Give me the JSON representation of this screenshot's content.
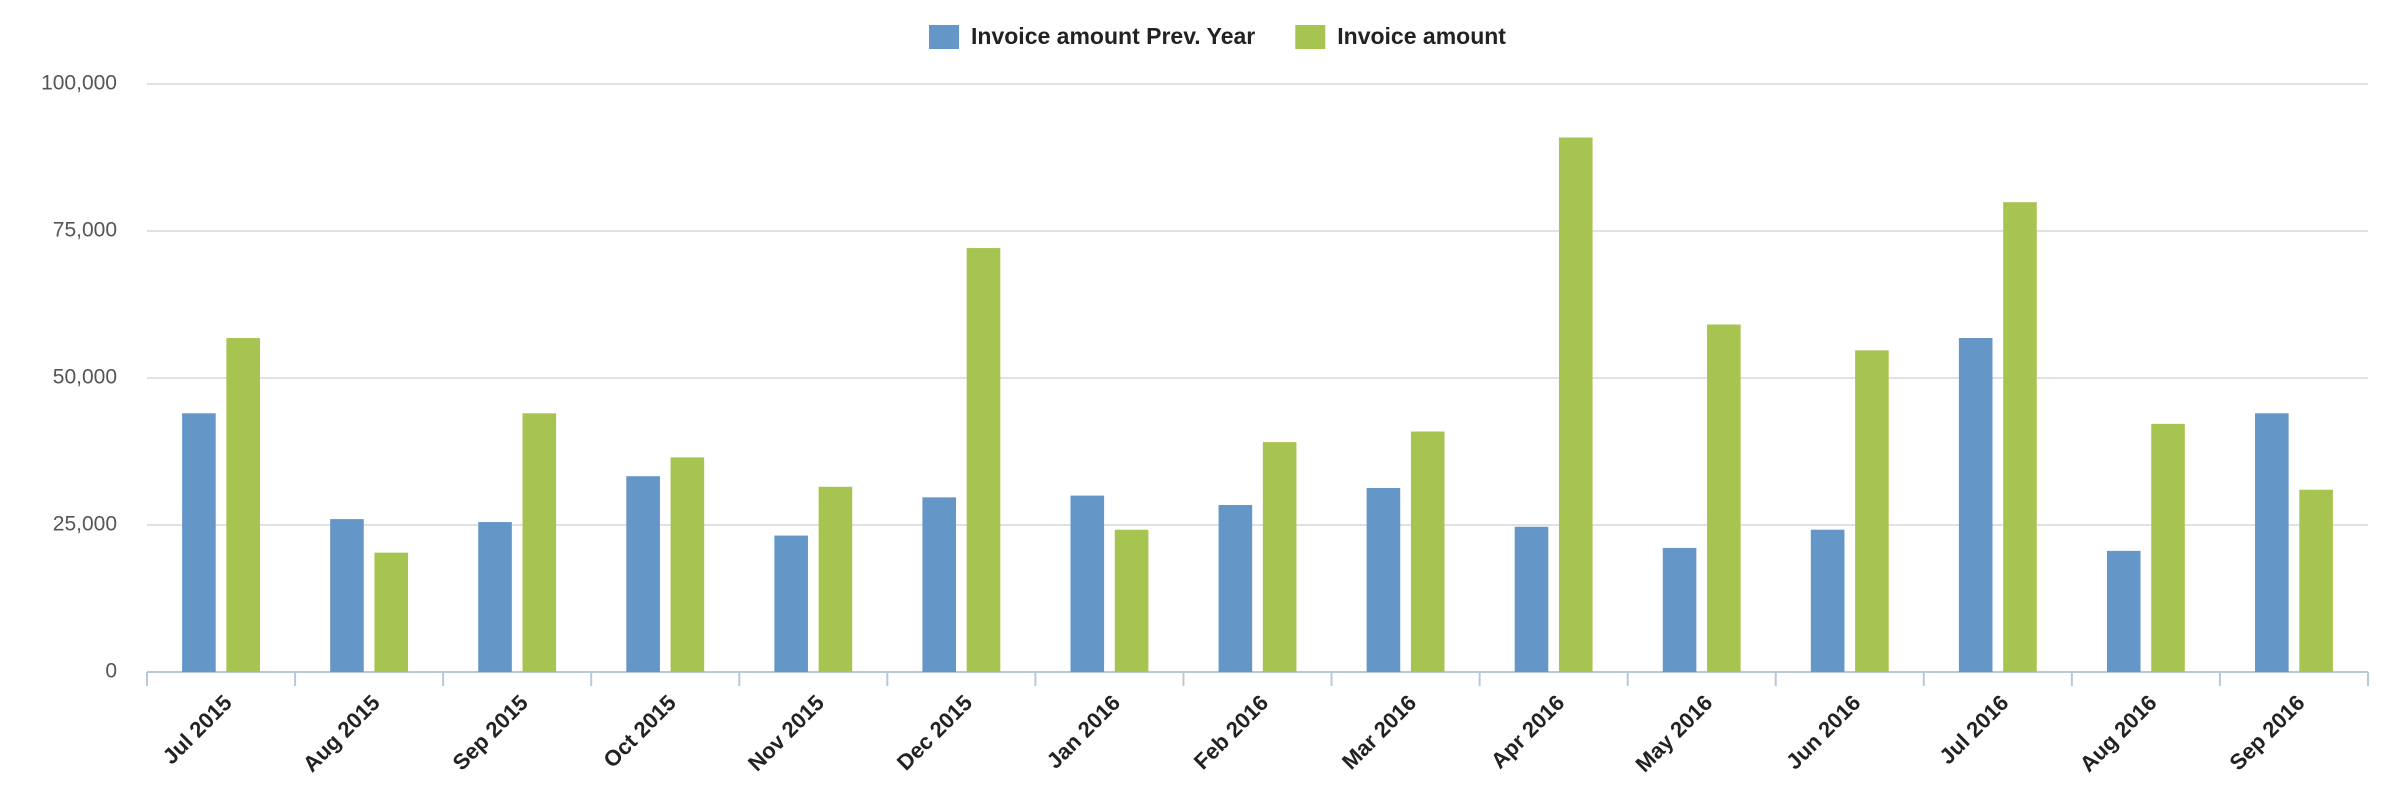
{
  "chart_data": {
    "type": "bar",
    "categories": [
      "Jul 2015",
      "Aug 2015",
      "Sep 2015",
      "Oct 2015",
      "Nov 2015",
      "Dec 2015",
      "Jan 2016",
      "Feb 2016",
      "Mar 2016",
      "Apr 2016",
      "May 2016",
      "Jun 2016",
      "Jul 2016",
      "Aug 2016",
      "Sep 2016"
    ],
    "series": [
      {
        "name": "Invoice amount Prev. Year",
        "color": "#6596c8",
        "values": [
          44000,
          26000,
          25500,
          33300,
          23200,
          29700,
          30000,
          28400,
          31300,
          24700,
          21100,
          24200,
          56800,
          20600,
          44000
        ]
      },
      {
        "name": "Invoice amount",
        "color": "#a8c450",
        "values": [
          56800,
          20300,
          44000,
          36500,
          31500,
          72100,
          24200,
          39100,
          40900,
          90900,
          59100,
          54700,
          79900,
          42200,
          31000
        ]
      }
    ],
    "ylim": [
      0,
      100000
    ],
    "yticks": [
      0,
      {
        "value": 25000,
        "label": "25,000"
      },
      {
        "value": 50000,
        "label": "50,000"
      },
      {
        "value": 75000,
        "label": "75,000"
      },
      {
        "value": 100000,
        "label": "100,000"
      }
    ],
    "grid": true,
    "legend": "top"
  }
}
